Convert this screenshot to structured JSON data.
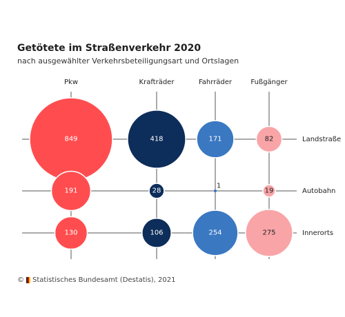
{
  "chart_data": {
    "type": "bubble-matrix",
    "title": "Getötete im Straßenverkehr 2020",
    "subtitle": "nach ausgewählter Verkehrsbeteiligungsart und Ortslagen",
    "columns": [
      "Pkw",
      "Krafträder",
      "Fahrräder",
      "Fußgänger"
    ],
    "rows": [
      "Landstraße",
      "Autobahn",
      "Innerorts"
    ],
    "colors": {
      "Pkw": "#ff4d4f",
      "Krafträder": "#0d2d5a",
      "Fahrräder": "#3a78c2",
      "Fußgänger": "#f9a5a8"
    },
    "label_colors": {
      "Pkw": "#ffffff",
      "Krafträder": "#ffffff",
      "Fahrräder": "#ffffff",
      "Fußgänger": "#222222"
    },
    "values": {
      "Landstraße": {
        "Pkw": 849,
        "Krafträder": 418,
        "Fahrräder": 171,
        "Fußgänger": 82
      },
      "Autobahn": {
        "Pkw": 191,
        "Krafträder": 28,
        "Fahrräder": 1,
        "Fußgänger": 19
      },
      "Innerorts": {
        "Pkw": 130,
        "Krafträder": 106,
        "Fahrräder": 254,
        "Fußgänger": 275
      }
    }
  },
  "footer": {
    "copyright": "©",
    "source": "Statistisches Bundesamt (Destatis), 2021"
  }
}
